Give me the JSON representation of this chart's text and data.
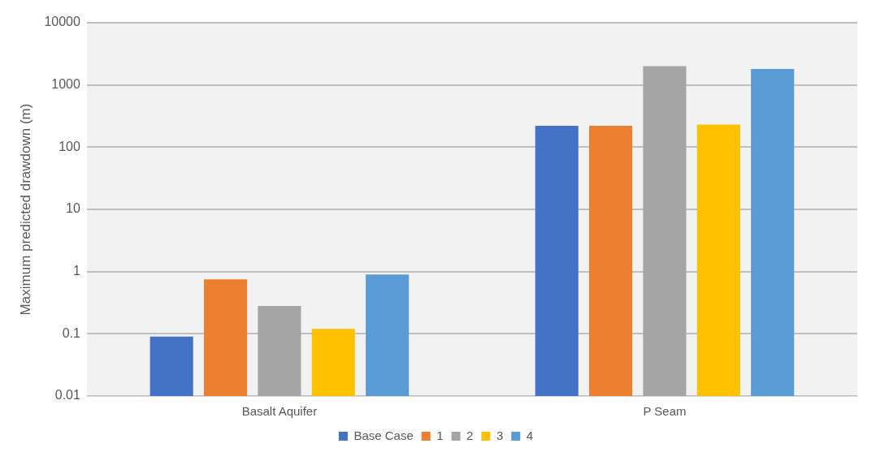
{
  "chart_data": {
    "type": "bar",
    "ylabel": "Maximum predicted drawdown (m)",
    "categories": [
      "Basalt Aquifer",
      "P Seam"
    ],
    "series": [
      {
        "name": "Base Case",
        "color": "#4472c4",
        "values": [
          0.09,
          220
        ]
      },
      {
        "name": "1",
        "color": "#ed7d31",
        "values": [
          0.75,
          220
        ]
      },
      {
        "name": "2",
        "color": "#a5a5a5",
        "values": [
          0.28,
          2000
        ]
      },
      {
        "name": "3",
        "color": "#ffc000",
        "values": [
          0.12,
          230
        ]
      },
      {
        "name": "4",
        "color": "#5b9bd5",
        "values": [
          0.9,
          1800
        ]
      }
    ],
    "log": "y",
    "ylim": [
      0.01,
      10000
    ],
    "yticks": [
      0.01,
      0.1,
      1,
      10,
      100,
      1000,
      10000
    ],
    "grid": "y",
    "legend": "bottom"
  }
}
